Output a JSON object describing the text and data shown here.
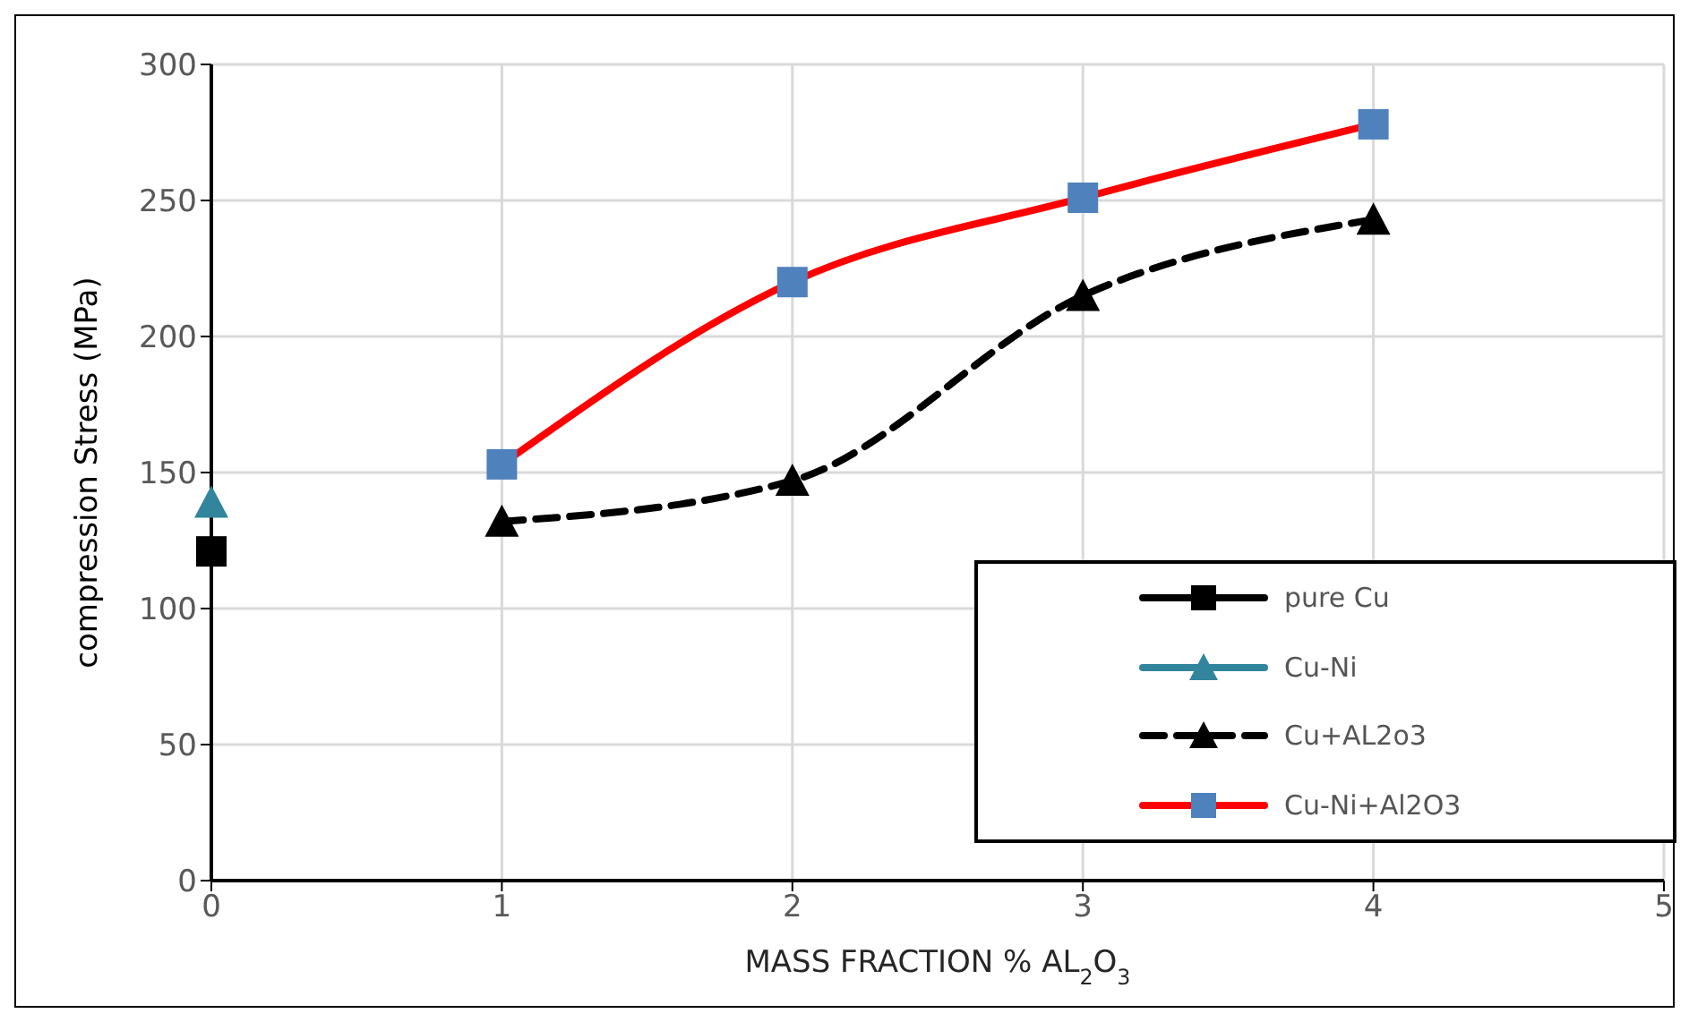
{
  "chart_data": {
    "type": "line",
    "xlabel": "MASS FRACTION % AL$_{2}$O$_{3}$",
    "ylabel": "compression Stress   (MPa)",
    "xlim": [
      0,
      5
    ],
    "xticks": [
      0,
      1,
      2,
      3,
      4,
      5
    ],
    "ylim": [
      0,
      300
    ],
    "yticks": [
      0,
      50,
      100,
      150,
      200,
      250,
      300
    ],
    "grid": true,
    "legend": "bottom right",
    "series": [
      {
        "name": "pure Cu",
        "color": "#000000",
        "marker": "square",
        "x": [
          0
        ],
        "values": [
          121
        ]
      },
      {
        "name": "Cu-Ni",
        "color": "#31859c",
        "marker": "triangle",
        "x": [
          0
        ],
        "values": [
          139
        ]
      },
      {
        "name": "Cu+AL2o3",
        "color": "#000000",
        "marker": "triangle",
        "line_style": "dashed",
        "x": [
          1,
          2,
          3,
          4
        ],
        "values": [
          132,
          147,
          215,
          243
        ]
      },
      {
        "name": "Cu-Ni+Al2O3",
        "color": "#ff0000",
        "marker": "square",
        "colors": [
          "#4f81bd",
          "#4f81bd",
          "#4f81bd",
          "#4f81bd"
        ],
        "x": [
          1,
          2,
          3,
          4
        ],
        "values": [
          153,
          220,
          251,
          278
        ]
      }
    ]
  }
}
